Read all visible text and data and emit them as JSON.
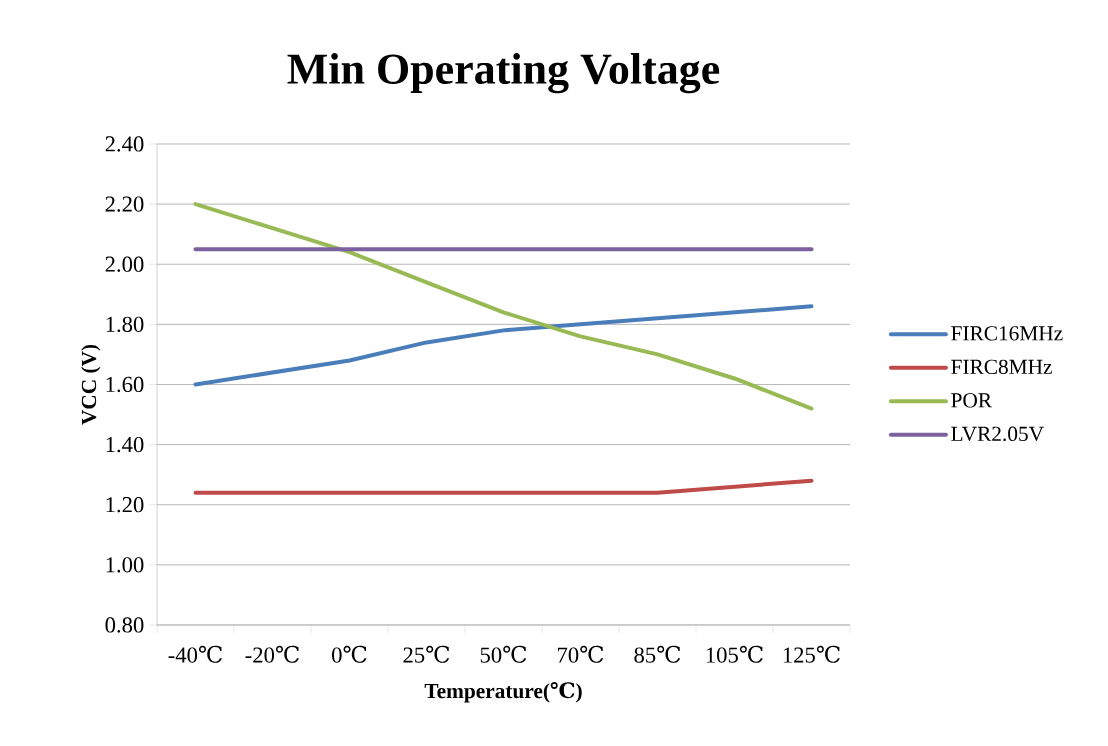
{
  "chart_data": {
    "type": "line",
    "title": "Min Operating Voltage",
    "xlabel": "Temperature(℃)",
    "ylabel": "VCC (V)",
    "categories": [
      "-40℃",
      "-20℃",
      "0℃",
      "25℃",
      "50℃",
      "70℃",
      "85℃",
      "105℃",
      "125℃"
    ],
    "series": [
      {
        "name": "FIRC16MHz",
        "color": "#4a7ebb",
        "values": [
          1.6,
          1.64,
          1.68,
          1.74,
          1.78,
          1.8,
          1.82,
          1.84,
          1.86
        ]
      },
      {
        "name": "FIRC8MHz",
        "color": "#be4b48",
        "values": [
          1.24,
          1.24,
          1.24,
          1.24,
          1.24,
          1.24,
          1.24,
          1.26,
          1.28
        ]
      },
      {
        "name": "POR",
        "color": "#98b954",
        "values": [
          2.2,
          2.12,
          2.04,
          1.94,
          1.84,
          1.76,
          1.7,
          1.62,
          1.52
        ]
      },
      {
        "name": "LVR2.05V",
        "color": "#7d60a0",
        "values": [
          2.05,
          2.05,
          2.05,
          2.05,
          2.05,
          2.05,
          2.05,
          2.05,
          2.05
        ]
      }
    ],
    "ylim": [
      0.8,
      2.4
    ],
    "yticks": [
      {
        "value": 0.8,
        "label": "0.80"
      },
      {
        "value": 1.0,
        "label": "1.00"
      },
      {
        "value": 1.2,
        "label": "1.20"
      },
      {
        "value": 1.4,
        "label": "1.40"
      },
      {
        "value": 1.6,
        "label": "1.60"
      },
      {
        "value": 1.8,
        "label": "1.80"
      },
      {
        "value": 2.0,
        "label": "2.00"
      },
      {
        "value": 2.2,
        "label": "2.20"
      },
      {
        "value": 2.4,
        "label": "2.40"
      }
    ],
    "grid": "y",
    "legend": "right",
    "marker": "none",
    "line_style": "solid"
  }
}
